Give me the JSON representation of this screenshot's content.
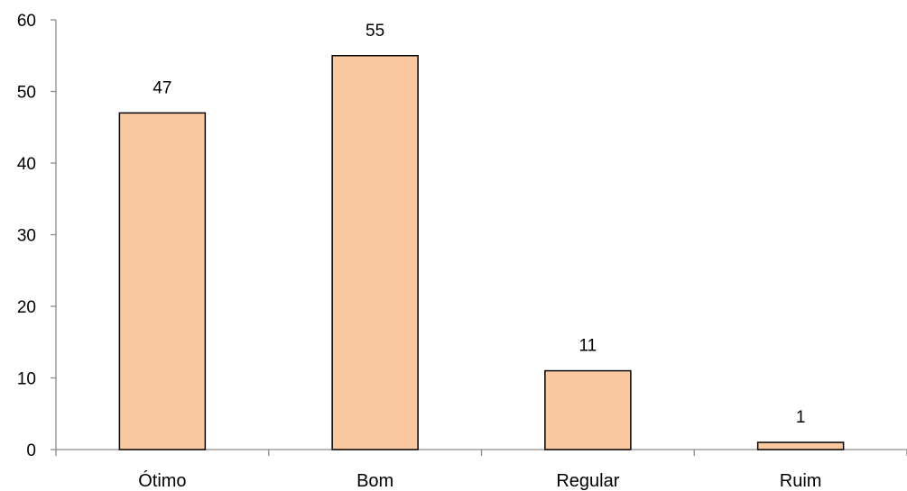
{
  "chart_data": {
    "type": "bar",
    "title": "",
    "xlabel": "",
    "ylabel": "",
    "categories": [
      "Ótimo",
      "Bom",
      "Regular",
      "Ruim"
    ],
    "values": [
      47,
      55,
      11,
      1
    ],
    "data_labels": [
      "47",
      "55",
      "11",
      "1"
    ],
    "ylim": [
      0,
      60
    ],
    "yticks": [
      0,
      10,
      20,
      30,
      40,
      50,
      60
    ],
    "grid": false,
    "legend": "none",
    "bar_color": "#FAC9A0",
    "bar_edge_color": "#000000"
  }
}
